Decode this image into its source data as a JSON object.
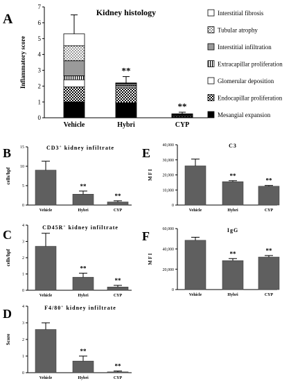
{
  "chart_data": [
    {
      "panel": "A",
      "type": "bar",
      "stacked": true,
      "title": "Kidney histology",
      "ylabel": "Inflammatory score",
      "categories": [
        "Vehicle",
        "Hybri",
        "CYP"
      ],
      "ylim": [
        0,
        7
      ],
      "yticks": [
        "0",
        "1",
        "2",
        "3",
        "4",
        "5",
        "6",
        "7"
      ],
      "series": [
        {
          "name": "Mesangial expansion",
          "values": [
            1.0,
            0.95,
            0.03
          ]
        },
        {
          "name": "Endocapillar proliferation",
          "values": [
            0.95,
            0.95,
            0.05
          ]
        },
        {
          "name": "Glomerular deposition",
          "values": [
            0.45,
            0.1,
            0.04
          ]
        },
        {
          "name": "Extracapillar proliferation",
          "values": [
            0.25,
            0.05,
            0.03
          ]
        },
        {
          "name": "Interstitial infiltration",
          "values": [
            0.95,
            0.1,
            0.05
          ]
        },
        {
          "name": "Tubular atrophy",
          "values": [
            0.95,
            0.03,
            0.03
          ]
        },
        {
          "name": "Interstitial fibrosis",
          "values": [
            0.75,
            0.02,
            0.02
          ]
        }
      ],
      "error_top": [
        6.5,
        2.6,
        0.35
      ],
      "significance": [
        "",
        "**",
        "**"
      ],
      "legend_position": "right"
    },
    {
      "panel": "B",
      "type": "bar",
      "title": "CD3",
      "title_sup": "+",
      "title_suffix": " kidney infiltrate",
      "ylabel": "cells/hpf",
      "categories": [
        "Vehicle",
        "Hybri",
        "CYP"
      ],
      "values": [
        9.0,
        2.8,
        0.8
      ],
      "errors": [
        2.3,
        0.8,
        0.3
      ],
      "ylim": [
        0,
        15
      ],
      "yticks": [
        "0",
        "5",
        "10",
        "15"
      ],
      "significance": [
        "",
        "**",
        "**"
      ]
    },
    {
      "panel": "C",
      "type": "bar",
      "title": "CD45R",
      "title_sup": "+",
      "title_suffix": " kidney infiltrate",
      "ylabel": "cells/hpf",
      "categories": [
        "Vehicle",
        "Hybri",
        "CYP"
      ],
      "values": [
        2.7,
        0.8,
        0.2
      ],
      "errors": [
        0.8,
        0.25,
        0.1
      ],
      "ylim": [
        0,
        4
      ],
      "yticks": [
        "0",
        "1",
        "2",
        "3",
        "4"
      ],
      "significance": [
        "",
        "**",
        "**"
      ]
    },
    {
      "panel": "D",
      "type": "bar",
      "title": "F4/80",
      "title_sup": "+",
      "title_suffix": " kidney infiltrate",
      "ylabel": "Score",
      "categories": [
        "Vehicle",
        "Hybri",
        "CYP"
      ],
      "values": [
        2.6,
        0.7,
        0.05
      ],
      "errors": [
        0.4,
        0.3,
        0.05
      ],
      "ylim": [
        0,
        4
      ],
      "yticks": [
        "0",
        "1",
        "2",
        "3",
        "4"
      ],
      "significance": [
        "",
        "**",
        "**"
      ]
    },
    {
      "panel": "E",
      "type": "bar",
      "title": "C3",
      "ylabel": "M F I",
      "categories": [
        "Vehicle",
        "Hybri",
        "CYP"
      ],
      "values": [
        26000,
        15500,
        12500
      ],
      "errors": [
        4500,
        700,
        500
      ],
      "ylim": [
        0,
        40000
      ],
      "yticks": [
        "0",
        "10,000",
        "20,000",
        "30,000",
        "40,000"
      ],
      "significance": [
        "",
        "**",
        "**"
      ]
    },
    {
      "panel": "F",
      "type": "bar",
      "title": "IgG",
      "ylabel": "M F I",
      "categories": [
        "Vehicle",
        "Hybri",
        "CYP"
      ],
      "values": [
        48500,
        28500,
        32000
      ],
      "errors": [
        3000,
        2000,
        1500
      ],
      "ylim": [
        0,
        60000
      ],
      "yticks": [
        "0",
        "20,000",
        "40,000",
        "60,000"
      ],
      "significance": [
        "",
        "**",
        "**"
      ]
    }
  ]
}
